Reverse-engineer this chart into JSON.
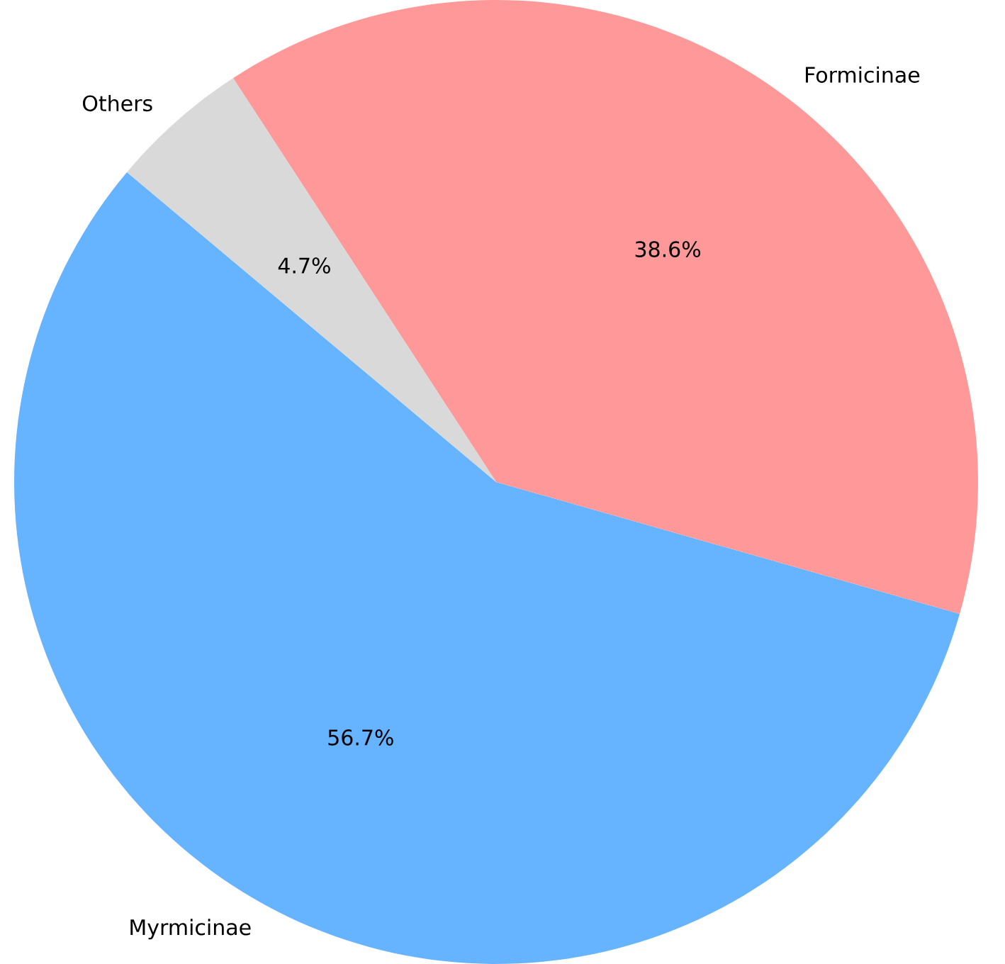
{
  "chart_data": {
    "type": "pie",
    "categories": [
      "Myrmicinae",
      "Formicinae",
      "Others"
    ],
    "values": [
      56.7,
      38.6,
      4.7
    ],
    "colors": [
      "#66b3ff",
      "#ff9999",
      "#d9d9d9"
    ],
    "value_labels": [
      "56.7%",
      "38.6%",
      "4.7%"
    ]
  }
}
